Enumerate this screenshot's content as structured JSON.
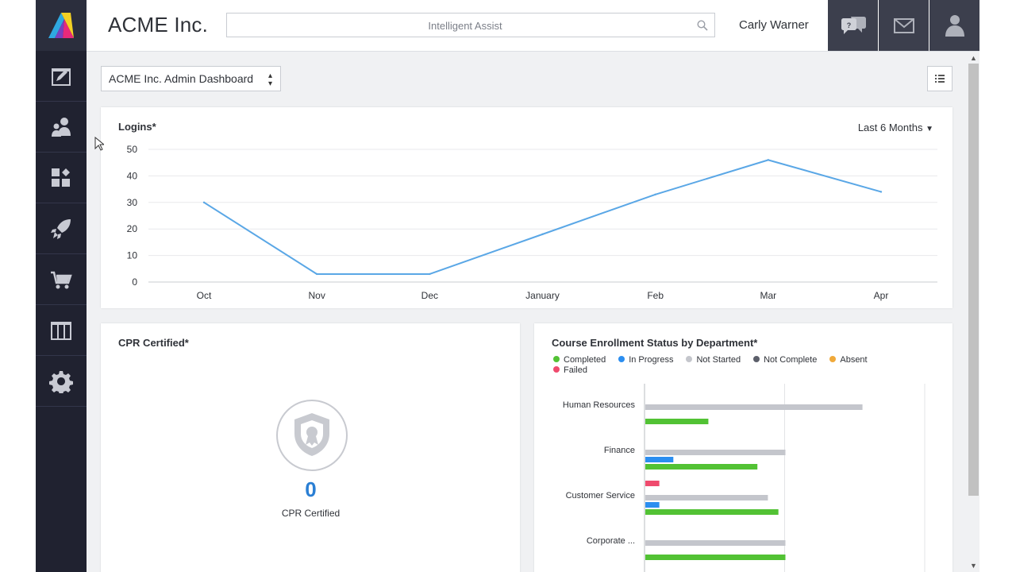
{
  "header": {
    "company": "ACME Inc.",
    "search_placeholder": "Intelligent Assist",
    "user_name": "Carly Warner"
  },
  "sidebar": {
    "items": [
      "courses-icon",
      "users-icon",
      "widgets-icon",
      "launch-icon",
      "store-icon",
      "catalog-icon",
      "settings-icon"
    ]
  },
  "toolbar": {
    "dashboard_selected": "ACME Inc. Admin Dashboard"
  },
  "logins_card": {
    "title": "Logins*",
    "range_label": "Last 6 Months"
  },
  "cpr_card": {
    "title": "CPR Certified*",
    "value": "0",
    "label": "CPR Certified"
  },
  "enrollment_card": {
    "title": "Course Enrollment Status by Department*"
  },
  "colors": {
    "line": "#5aa7e6",
    "completed": "#52c234",
    "in_progress": "#2b8ef0",
    "not_started": "#c4c6cc",
    "not_complete": "#5c5f6a",
    "absent": "#f0a93a",
    "failed": "#ef4a6d"
  },
  "chart_data": [
    {
      "type": "line",
      "title": "Logins*",
      "categories": [
        "Oct",
        "Nov",
        "Dec",
        "January",
        "Feb",
        "Mar",
        "Apr"
      ],
      "values": [
        30,
        3,
        3,
        18,
        33,
        46,
        34
      ],
      "yticks": [
        0,
        10,
        20,
        30,
        40,
        50
      ],
      "ylim": [
        0,
        50
      ],
      "grid": true
    },
    {
      "type": "bar",
      "orientation": "horizontal",
      "title": "Course Enrollment Status by Department*",
      "categories": [
        "Human Resources",
        "Finance",
        "Customer Service",
        "Corporate ..."
      ],
      "series": [
        {
          "name": "Completed",
          "values": [
            9,
            16,
            19,
            20
          ]
        },
        {
          "name": "In Progress",
          "values": [
            0,
            4,
            2,
            0
          ]
        },
        {
          "name": "Not Started",
          "values": [
            31,
            20,
            17.5,
            20
          ]
        },
        {
          "name": "Not Complete",
          "values": [
            0,
            0,
            0,
            0
          ]
        },
        {
          "name": "Absent",
          "values": [
            0,
            0,
            0,
            0
          ]
        },
        {
          "name": "Failed",
          "values": [
            0,
            0,
            2,
            0
          ]
        }
      ],
      "xlim": [
        0,
        40
      ],
      "grid": true,
      "legend": "top"
    }
  ]
}
